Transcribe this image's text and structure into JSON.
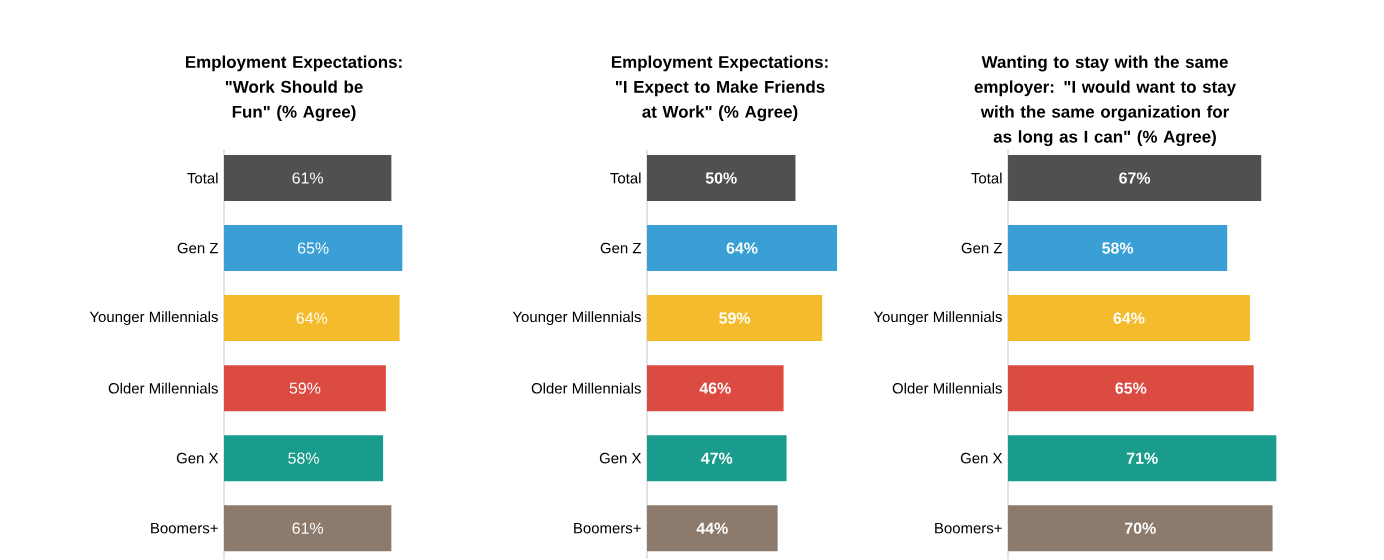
{
  "chart_data": [
    {
      "type": "bar",
      "orientation": "horizontal",
      "relative": false,
      "title": "Employment Expectations: \"Work Should be Fun\" (% Agree)",
      "categories": [
        "Total",
        "Gen Z",
        "Younger Millennials",
        "Older Millennials",
        "Gen X",
        "Boomers+"
      ],
      "values": [
        61,
        65,
        64,
        59,
        58,
        61
      ],
      "value_labels": [
        "61%",
        "65%",
        "64%",
        "59%",
        "58%",
        "61%"
      ],
      "colors": [
        "#50504e",
        "#3a9fd4",
        "#f4bb2c",
        "#dc4b41",
        "#1a9c8c",
        "#8c7b6c"
      ]
    },
    {
      "type": "bar",
      "orientation": "horizontal",
      "title": "Employment Expectations: \"I Expect to Make Friends at Work\" (% Agree)",
      "categories": [
        "Total",
        "Gen Z",
        "Younger Millennials",
        "Older Millennials",
        "Gen X",
        "Boomers+"
      ],
      "values": [
        50,
        64,
        59,
        46,
        47,
        44
      ],
      "value_labels": [
        "50%",
        "64%",
        "59%",
        "46%",
        "47%",
        "44%"
      ],
      "colors": [
        "#50504e",
        "#3a9fd4",
        "#f4bb2c",
        "#dc4b41",
        "#1a9c8c",
        "#8c7b6c"
      ]
    },
    {
      "type": "bar",
      "orientation": "horizontal",
      "title": "Wanting to stay with the same employer: \"I would want to stay with the same organization for as long as I can\" (% Agree)",
      "categories": [
        "Total",
        "Gen Z",
        "Younger Millennials",
        "Older Millennials",
        "Gen X",
        "Boomers+"
      ],
      "values": [
        67,
        58,
        64,
        65,
        71,
        70
      ],
      "value_labels": [
        "67%",
        "58%",
        "64%",
        "65%",
        "71%",
        "70%"
      ],
      "colors": [
        "#50504e",
        "#3a9fd4",
        "#f4bb2c",
        "#dc4b41",
        "#1a9c8c",
        "#8c7b6c"
      ]
    }
  ]
}
